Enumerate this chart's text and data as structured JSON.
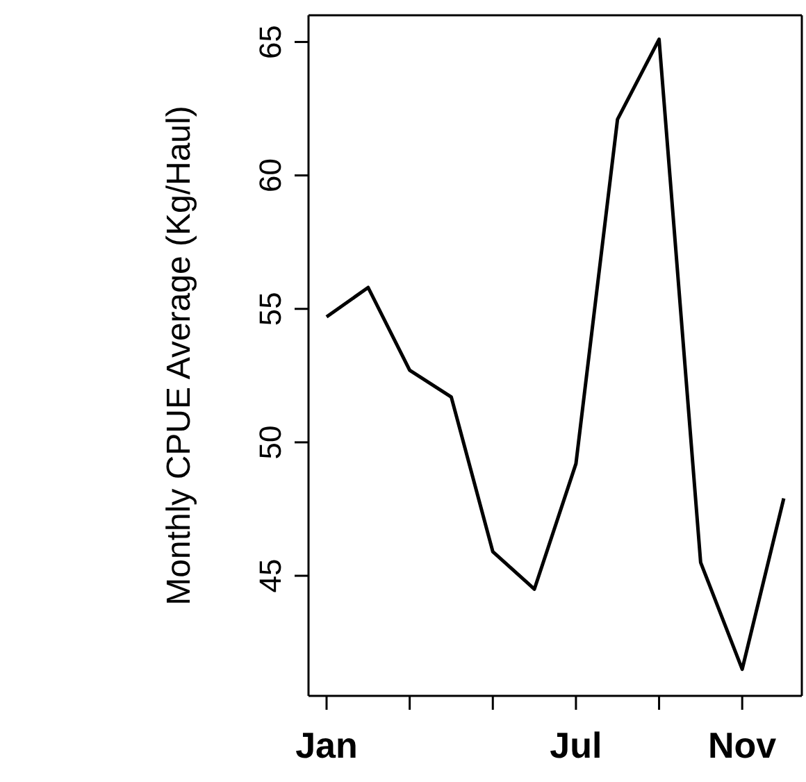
{
  "chart_data": {
    "type": "line",
    "ylabel": "Monthly CPUE Average (Kg/Haul)",
    "categories": [
      "Jan",
      null,
      null,
      null,
      null,
      null,
      "Jul",
      null,
      null,
      null,
      "Nov",
      null
    ],
    "values": [
      54.7,
      55.8,
      52.7,
      51.7,
      45.9,
      44.5,
      49.2,
      62.1,
      65.1,
      45.5,
      41.5,
      47.9
    ],
    "color": "#000000",
    "marker": "none",
    "line_style": "solid",
    "ylim": [
      40.5,
      66
    ],
    "yticks": [
      45,
      50,
      55,
      60,
      65
    ]
  }
}
